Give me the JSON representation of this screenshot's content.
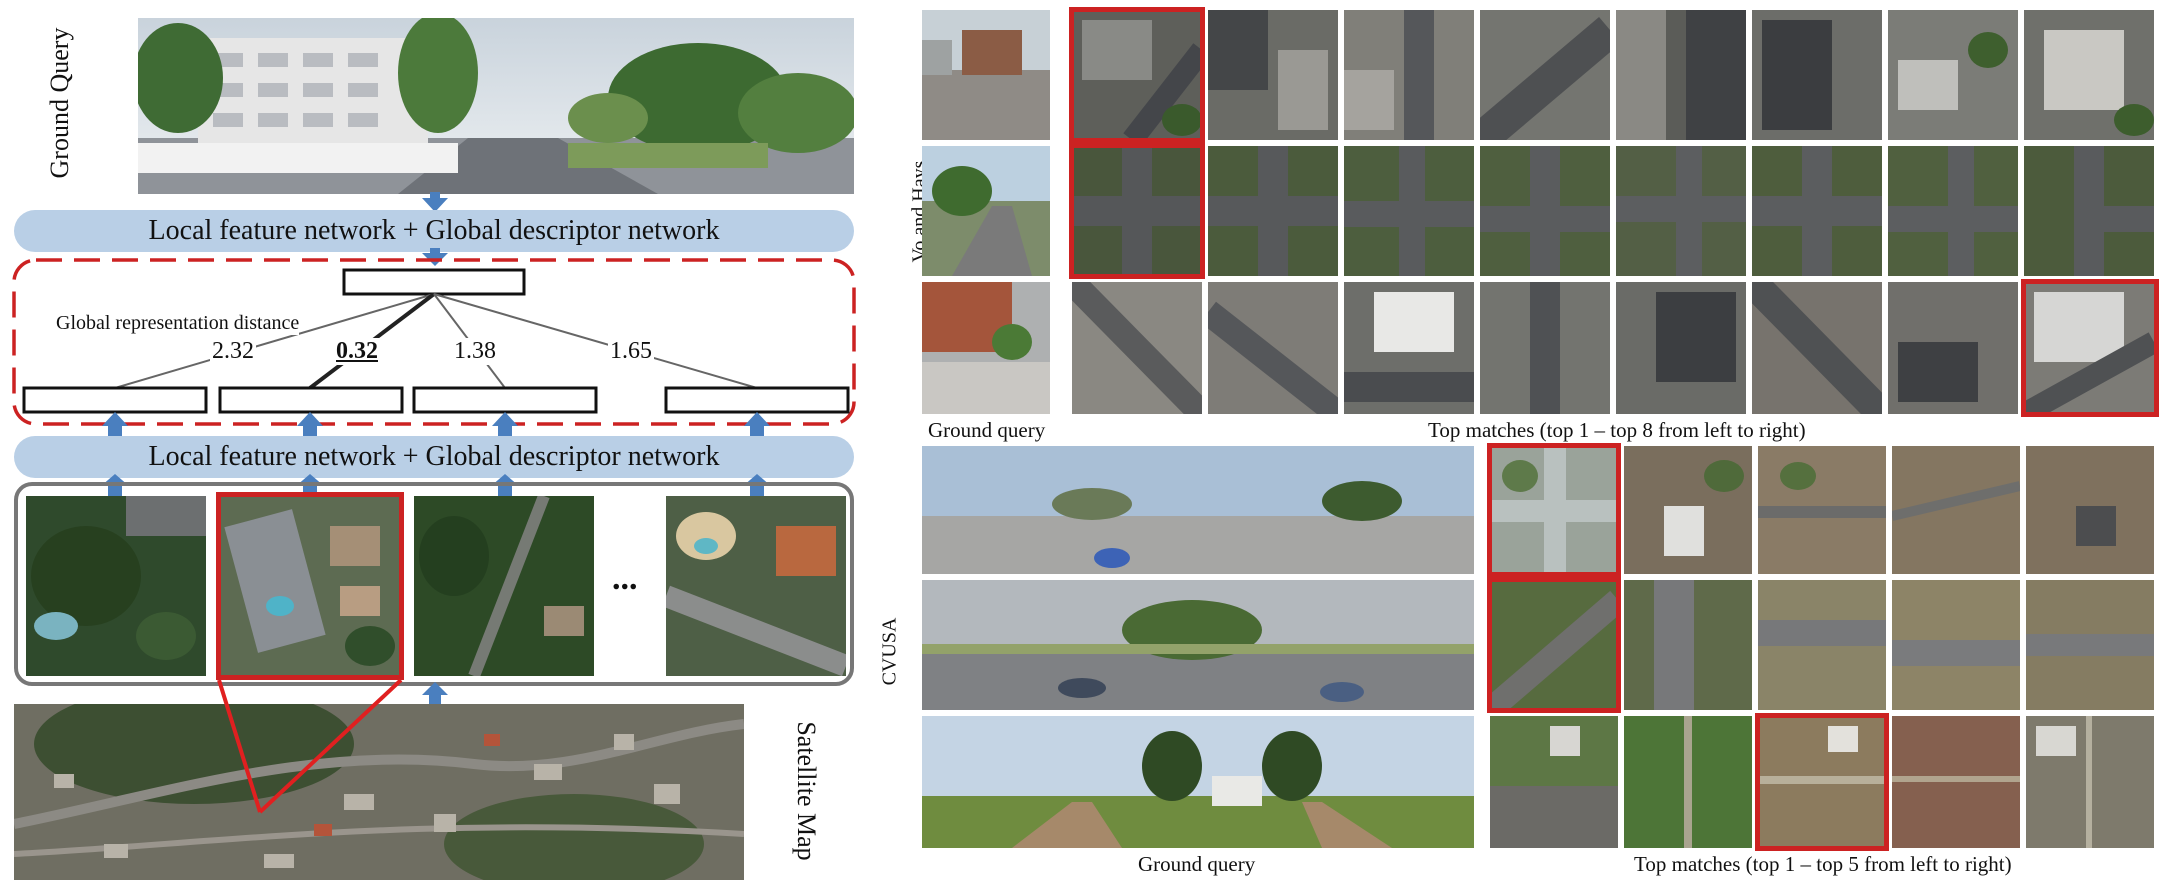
{
  "left": {
    "ground_query_label": "Ground Query",
    "top_network_label": "Local feature network + Global descriptor network",
    "bottom_network_label": "Local feature network + Global descriptor network",
    "distance_label": "Global representation distance",
    "distances": [
      "2.32",
      "0.32",
      "1.38",
      "1.65"
    ],
    "ellipsis": "...",
    "satellite_label": "Satellite Map"
  },
  "right": {
    "vo_hays_label": "Vo and Hays",
    "cvusa_label": "CVUSA",
    "top_ground_caption": "Ground query",
    "top_matches_caption": "Top matches (top 1 – top 8 from left to right)",
    "bottom_ground_caption": "Ground query",
    "bottom_matches_caption": "Top matches (top 1 – top 5 from left to right)"
  },
  "colors": {
    "network_band": "#b9cfe6",
    "highlight_red": "#cc2222",
    "arrow_blue": "#4a7fbf",
    "frame_gray": "#777777"
  }
}
